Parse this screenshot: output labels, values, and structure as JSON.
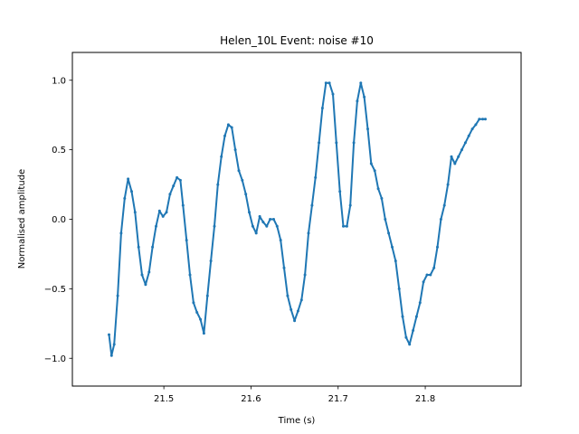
{
  "chart_data": {
    "type": "line",
    "title": "Helen_10L Event: noise #10",
    "xlabel": "Time (s)",
    "ylabel": "Normalised amplitude",
    "xlim": [
      21.395,
      21.91
    ],
    "ylim": [
      -1.2,
      1.2
    ],
    "xticks": [
      21.5,
      21.6,
      21.7,
      21.8
    ],
    "xtick_labels": [
      "21.5",
      "21.6",
      "21.7",
      "21.8"
    ],
    "yticks": [
      1.0,
      0.5,
      0.0,
      -0.5,
      -1.0
    ],
    "ytick_labels": [
      "1.0",
      "0.5",
      "0.0",
      "−0.5",
      "−1.0"
    ],
    "grid": false,
    "series": [
      {
        "color": "#1f77b4",
        "x": [
          21.437,
          21.44,
          21.443,
          21.447,
          21.451,
          21.455,
          21.459,
          21.463,
          21.467,
          21.471,
          21.475,
          21.479,
          21.483,
          21.487,
          21.491,
          21.495,
          21.499,
          21.503,
          21.507,
          21.511,
          21.515,
          21.519,
          21.522,
          21.526,
          21.53,
          21.534,
          21.538,
          21.542,
          21.546,
          21.55,
          21.554,
          21.558,
          21.562,
          21.566,
          21.57,
          21.574,
          21.578,
          21.582,
          21.586,
          21.59,
          21.594,
          21.598,
          21.602,
          21.606,
          21.61,
          21.614,
          21.618,
          21.622,
          21.626,
          21.63,
          21.634,
          21.638,
          21.642,
          21.646,
          21.65,
          21.654,
          21.658,
          21.662,
          21.666,
          21.67,
          21.674,
          21.678,
          21.682,
          21.686,
          21.69,
          21.694,
          21.698,
          21.702,
          21.706,
          21.71,
          21.714,
          21.718,
          21.722,
          21.726,
          21.73,
          21.734,
          21.738,
          21.742,
          21.746,
          21.75,
          21.754,
          21.758,
          21.762,
          21.766,
          21.77,
          21.774,
          21.778,
          21.782,
          21.786,
          21.79,
          21.794,
          21.798,
          21.802,
          21.806,
          21.81,
          21.814,
          21.818,
          21.822,
          21.826,
          21.83,
          21.834,
          21.838,
          21.842,
          21.846,
          21.85,
          21.854,
          21.858,
          21.862,
          21.866,
          21.869
        ],
        "y": [
          -0.83,
          -0.98,
          -0.9,
          -0.55,
          -0.1,
          0.15,
          0.29,
          0.2,
          0.05,
          -0.2,
          -0.4,
          -0.47,
          -0.38,
          -0.2,
          -0.05,
          0.06,
          0.02,
          0.05,
          0.18,
          0.24,
          0.3,
          0.28,
          0.1,
          -0.15,
          -0.4,
          -0.6,
          -0.67,
          -0.72,
          -0.82,
          -0.55,
          -0.3,
          -0.05,
          0.25,
          0.45,
          0.6,
          0.68,
          0.66,
          0.5,
          0.35,
          0.28,
          0.18,
          0.05,
          -0.05,
          -0.1,
          0.02,
          -0.02,
          -0.05,
          0.0,
          0.0,
          -0.05,
          -0.15,
          -0.35,
          -0.55,
          -0.65,
          -0.73,
          -0.66,
          -0.58,
          -0.4,
          -0.1,
          0.1,
          0.3,
          0.55,
          0.8,
          0.98,
          0.98,
          0.9,
          0.55,
          0.2,
          -0.05,
          -0.05,
          0.1,
          0.55,
          0.85,
          0.98,
          0.88,
          0.65,
          0.4,
          0.35,
          0.22,
          0.15,
          0.0,
          -0.1,
          -0.2,
          -0.3,
          -0.5,
          -0.7,
          -0.85,
          -0.9,
          -0.8,
          -0.7,
          -0.6,
          -0.45,
          -0.4,
          -0.4,
          -0.35,
          -0.2,
          0.0,
          0.1,
          0.25,
          0.45,
          0.4,
          0.45,
          0.5,
          0.55,
          0.6,
          0.65,
          0.68,
          0.72,
          0.72,
          0.72
        ]
      }
    ]
  }
}
